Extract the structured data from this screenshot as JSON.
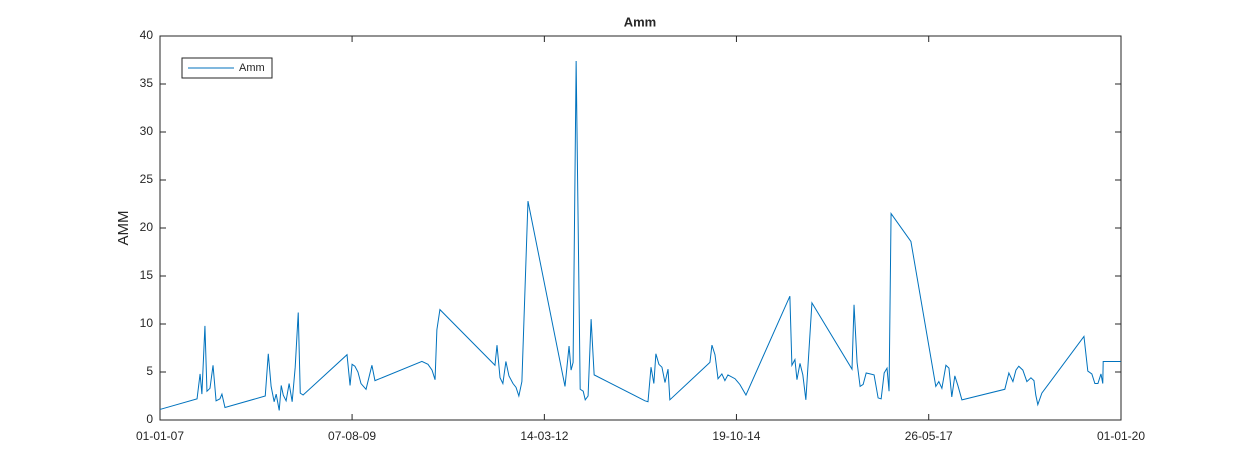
{
  "chart_data": {
    "type": "line",
    "title": "Amm",
    "ylabel": "AMM",
    "x": [
      "2007-01-01",
      "2007-07-03",
      "2007-07-18",
      "2007-07-27",
      "2007-08-11",
      "2007-08-21",
      "2007-09-05",
      "2007-09-20",
      "2007-10-05",
      "2007-10-24",
      "2007-11-03",
      "2007-11-18",
      "2008-06-04",
      "2008-06-19",
      "2008-07-03",
      "2008-07-18",
      "2008-07-28",
      "2008-08-12",
      "2008-08-22",
      "2008-09-01",
      "2008-09-15",
      "2008-09-30",
      "2008-10-15",
      "2008-10-30",
      "2008-11-14",
      "2008-11-24",
      "2008-12-08",
      "2009-07-13",
      "2009-07-28",
      "2009-08-07",
      "2009-08-21",
      "2009-09-05",
      "2009-09-20",
      "2009-10-15",
      "2009-11-13",
      "2009-11-28",
      "2010-07-18",
      "2010-08-17",
      "2010-09-06",
      "2010-09-21",
      "2010-09-30",
      "2010-10-15",
      "2011-07-14",
      "2011-07-24",
      "2011-08-08",
      "2011-08-22",
      "2011-09-06",
      "2011-09-21",
      "2011-10-11",
      "2011-10-26",
      "2011-11-09",
      "2011-11-24",
      "2011-12-24",
      "2012-06-24",
      "2012-07-14",
      "2012-07-24",
      "2012-08-03",
      "2012-08-18",
      "2012-09-07",
      "2012-09-22",
      "2012-10-02",
      "2012-10-16",
      "2012-10-31",
      "2012-11-15",
      "2013-07-24",
      "2013-08-08",
      "2013-08-23",
      "2013-09-06",
      "2013-09-16",
      "2013-10-01",
      "2013-10-16",
      "2013-10-31",
      "2013-11-15",
      "2013-11-24",
      "2014-06-10",
      "2014-06-20",
      "2014-07-05",
      "2014-07-20",
      "2014-08-08",
      "2014-08-23",
      "2014-09-07",
      "2014-10-12",
      "2014-11-05",
      "2014-12-05",
      "2015-07-10",
      "2015-07-20",
      "2015-08-04",
      "2015-08-14",
      "2015-08-29",
      "2015-09-12",
      "2015-09-27",
      "2015-10-27",
      "2016-05-12",
      "2016-05-22",
      "2016-06-06",
      "2016-06-21",
      "2016-07-06",
      "2016-07-21",
      "2016-08-09",
      "2016-08-29",
      "2016-09-18",
      "2016-10-03",
      "2016-10-18",
      "2016-11-01",
      "2016-11-11",
      "2016-11-21",
      "2017-02-27",
      "2017-06-30",
      "2017-07-15",
      "2017-07-30",
      "2017-08-19",
      "2017-09-03",
      "2017-09-17",
      "2017-10-02",
      "2017-10-17",
      "2017-11-06",
      "2018-06-06",
      "2018-06-26",
      "2018-07-16",
      "2018-07-31",
      "2018-08-14",
      "2018-09-03",
      "2018-09-23",
      "2018-10-13",
      "2018-10-28",
      "2018-11-06",
      "2018-11-16",
      "2018-12-06",
      "2019-07-02",
      "2019-07-21",
      "2019-08-10",
      "2019-08-25",
      "2019-09-09",
      "2019-09-24",
      "2019-10-03",
      "2019-10-05",
      "2019-12-31"
    ],
    "series": [
      {
        "name": "Amm",
        "color": "#0072bd",
        "values": [
          1.1,
          2.2,
          4.8,
          2.7,
          9.8,
          3.0,
          3.3,
          5.7,
          2.0,
          2.2,
          2.7,
          1.3,
          2.5,
          6.9,
          3.5,
          1.9,
          2.7,
          1.0,
          3.6,
          2.6,
          2.0,
          3.8,
          1.9,
          5.5,
          11.2,
          2.8,
          2.6,
          6.8,
          3.6,
          5.8,
          5.6,
          5.0,
          3.8,
          3.2,
          5.7,
          4.1,
          6.1,
          5.8,
          5.2,
          4.2,
          9.4,
          11.5,
          5.7,
          7.8,
          4.4,
          3.8,
          6.1,
          4.6,
          3.8,
          3.4,
          2.5,
          4.0,
          22.8,
          3.5,
          7.7,
          5.2,
          6.0,
          37.4,
          3.2,
          3.0,
          2.1,
          2.5,
          10.5,
          4.7,
          2.0,
          1.9,
          5.5,
          3.8,
          6.9,
          5.8,
          5.5,
          3.9,
          5.3,
          2.1,
          6.0,
          7.8,
          6.8,
          4.3,
          4.8,
          4.1,
          4.7,
          4.3,
          3.7,
          2.6,
          12.9,
          5.7,
          6.3,
          4.2,
          5.9,
          4.7,
          2.1,
          12.2,
          5.3,
          12.0,
          6.0,
          3.5,
          3.7,
          4.9,
          4.8,
          4.7,
          2.3,
          2.2,
          4.9,
          5.4,
          3.0,
          21.5,
          18.6,
          3.5,
          4.0,
          3.3,
          5.7,
          5.4,
          2.4,
          4.6,
          3.6,
          2.1,
          3.2,
          4.9,
          4.0,
          5.2,
          5.6,
          5.2,
          4.0,
          4.4,
          4.1,
          2.6,
          1.6,
          2.8,
          8.7,
          5.1,
          4.8,
          3.8,
          3.8,
          4.8,
          3.8,
          6.1,
          6.1
        ]
      }
    ],
    "xlim": [
      "2007-01-01",
      "2020-01-01"
    ],
    "xticks": [
      {
        "value": "2007-01-01",
        "label": "01-01-07"
      },
      {
        "value": "2009-08-07",
        "label": "07-08-09"
      },
      {
        "value": "2012-03-14",
        "label": "14-03-12"
      },
      {
        "value": "2014-10-19",
        "label": "19-10-14"
      },
      {
        "value": "2017-05-26",
        "label": "26-05-17"
      },
      {
        "value": "2020-01-01",
        "label": "01-01-20"
      }
    ],
    "ylim": [
      0,
      40
    ],
    "yticks": [
      0,
      5,
      10,
      15,
      20,
      25,
      30,
      35,
      40
    ],
    "legend": "northwest"
  }
}
